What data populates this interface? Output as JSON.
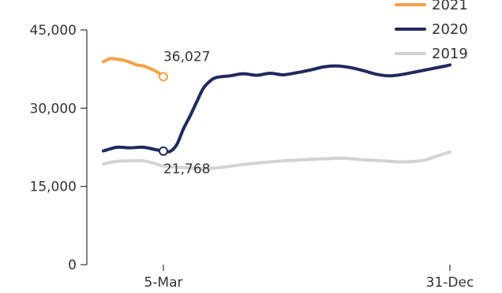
{
  "chart_data": {
    "type": "line",
    "title": "",
    "xlabel": "",
    "ylabel": "",
    "ylim": [
      0,
      45000
    ],
    "yticks": [
      0,
      15000,
      30000,
      45000
    ],
    "ytick_labels": [
      "0",
      "15,000",
      "30,000",
      "45,000"
    ],
    "xlim": [
      "1-Jan",
      "31-Dec"
    ],
    "xticks": [
      "5-Mar",
      "31-Dec"
    ],
    "xtick_labels": [
      "5-Mar",
      "31-Dec"
    ],
    "grid": false,
    "legend_position": "top-right",
    "series": [
      {
        "name": "2021",
        "color": "#f5a04a",
        "x": [
          "1-Jan",
          "8-Jan",
          "15-Jan",
          "22-Jan",
          "29-Jan",
          "5-Feb",
          "12-Feb",
          "19-Feb",
          "26-Feb",
          "5-Mar"
        ],
        "values": [
          38900,
          39500,
          39400,
          39200,
          38800,
          38300,
          38100,
          37600,
          37000,
          36027
        ]
      },
      {
        "name": "2020",
        "color": "#1f2a5c",
        "x": [
          "1-Jan",
          "15-Jan",
          "29-Jan",
          "12-Feb",
          "26-Feb",
          "5-Mar",
          "12-Mar",
          "19-Mar",
          "26-Mar",
          "2-Apr",
          "9-Apr",
          "16-Apr",
          "23-Apr",
          "30-Apr",
          "14-May",
          "28-May",
          "11-Jun",
          "25-Jun",
          "9-Jul",
          "23-Jul",
          "6-Aug",
          "20-Aug",
          "3-Sep",
          "17-Sep",
          "1-Oct",
          "15-Oct",
          "29-Oct",
          "12-Nov",
          "26-Nov",
          "10-Dec",
          "24-Dec",
          "31-Dec"
        ],
        "values": [
          21800,
          22500,
          22400,
          22500,
          22000,
          21768,
          21700,
          23000,
          26000,
          28500,
          31200,
          33800,
          35200,
          35900,
          36200,
          36600,
          36300,
          36700,
          36400,
          36800,
          37300,
          37900,
          38100,
          37800,
          37200,
          36500,
          36200,
          36500,
          37000,
          37500,
          38000,
          38300
        ]
      },
      {
        "name": "2019",
        "color": "#d3d3d3",
        "x": [
          "1-Jan",
          "15-Jan",
          "29-Jan",
          "12-Feb",
          "26-Feb",
          "5-Mar",
          "26-Mar",
          "16-Apr",
          "7-May",
          "28-May",
          "18-Jun",
          "9-Jul",
          "30-Jul",
          "20-Aug",
          "10-Sep",
          "1-Oct",
          "22-Oct",
          "12-Nov",
          "3-Dec",
          "17-Dec",
          "31-Dec"
        ],
        "values": [
          19300,
          19800,
          19900,
          19900,
          19300,
          18900,
          18600,
          18400,
          18700,
          19200,
          19600,
          19900,
          20100,
          20300,
          20400,
          20100,
          19900,
          19700,
          20000,
          20800,
          21600
        ]
      }
    ],
    "annotations": [
      {
        "series": "2021",
        "x": "5-Mar",
        "value": 36027,
        "label": "36,027"
      },
      {
        "series": "2020",
        "x": "5-Mar",
        "value": 21768,
        "label": "21,768"
      }
    ]
  }
}
